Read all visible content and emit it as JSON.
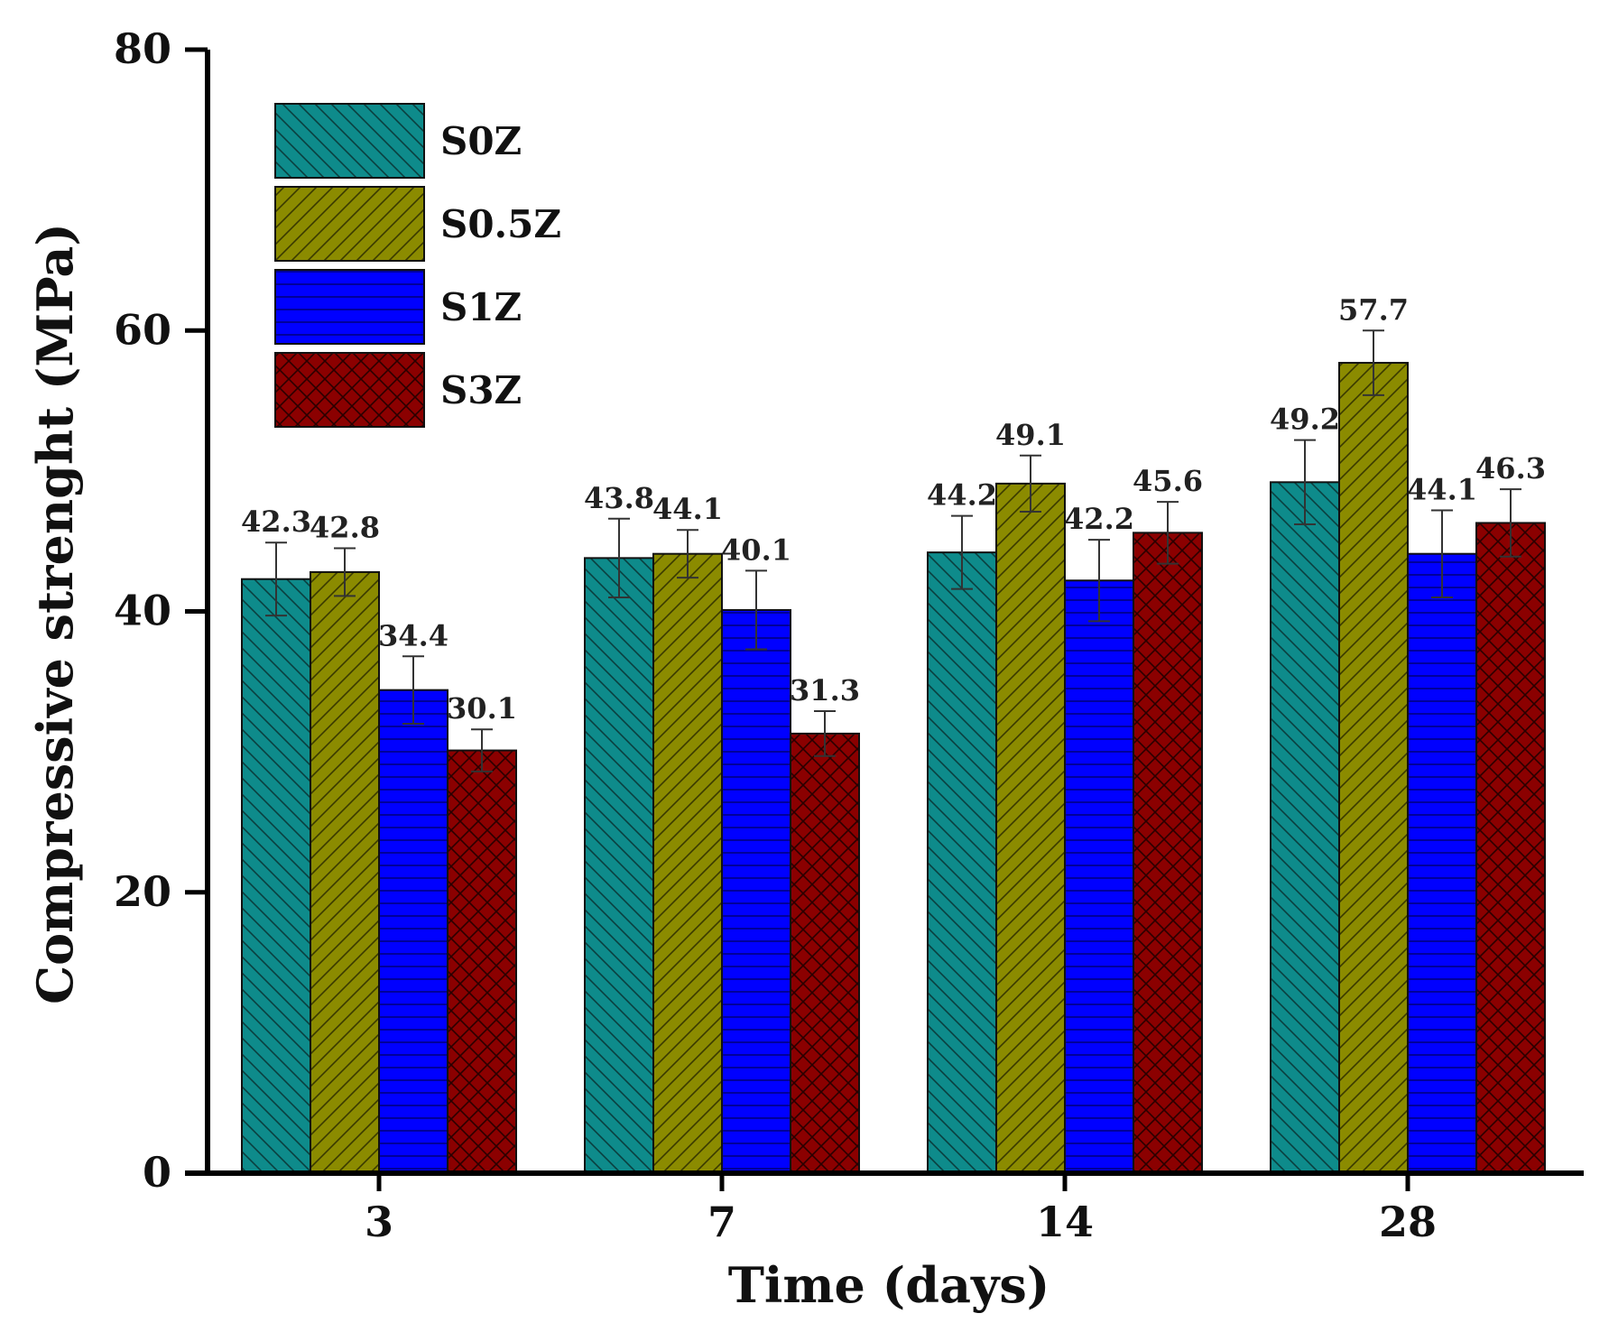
{
  "chart_data": {
    "type": "bar",
    "title": "",
    "xlabel": "Time (days)",
    "ylabel": "Compressive strenght (MPa)",
    "ylim": [
      0,
      80
    ],
    "yticks": [
      0,
      20,
      40,
      60,
      80
    ],
    "categories": [
      "3",
      "7",
      "14",
      "28"
    ],
    "series": [
      {
        "name": "S0Z",
        "color": "#0e8b8b",
        "hatch": "backslash",
        "values": [
          42.3,
          43.8,
          44.2,
          49.2
        ],
        "labels": [
          "42.3",
          "43.8",
          "44.2",
          "49.2"
        ],
        "errors": [
          2.6,
          2.8,
          2.6,
          3.0
        ]
      },
      {
        "name": "S0.5Z",
        "color": "#8b8b00",
        "hatch": "slash",
        "values": [
          42.8,
          44.1,
          49.1,
          57.7
        ],
        "labels": [
          "42.8",
          "44.1",
          "49.1",
          "57.7"
        ],
        "errors": [
          1.7,
          1.7,
          2.0,
          2.3
        ]
      },
      {
        "name": "S1Z",
        "color": "#0000ff",
        "hatch": "horizontal",
        "values": [
          34.4,
          40.1,
          42.2,
          44.1
        ],
        "labels": [
          "34.4",
          "40.1",
          "42.2",
          "44.1"
        ],
        "errors": [
          2.4,
          2.8,
          2.9,
          3.1
        ]
      },
      {
        "name": "S3Z",
        "color": "#8b0000",
        "hatch": "cross",
        "values": [
          30.1,
          31.3,
          45.6,
          46.3
        ],
        "labels": [
          "30.1",
          "31.3",
          "45.6",
          "46.3"
        ],
        "errors": [
          1.5,
          1.6,
          2.2,
          2.4
        ]
      }
    ],
    "legend": {
      "position": "top-left"
    }
  }
}
